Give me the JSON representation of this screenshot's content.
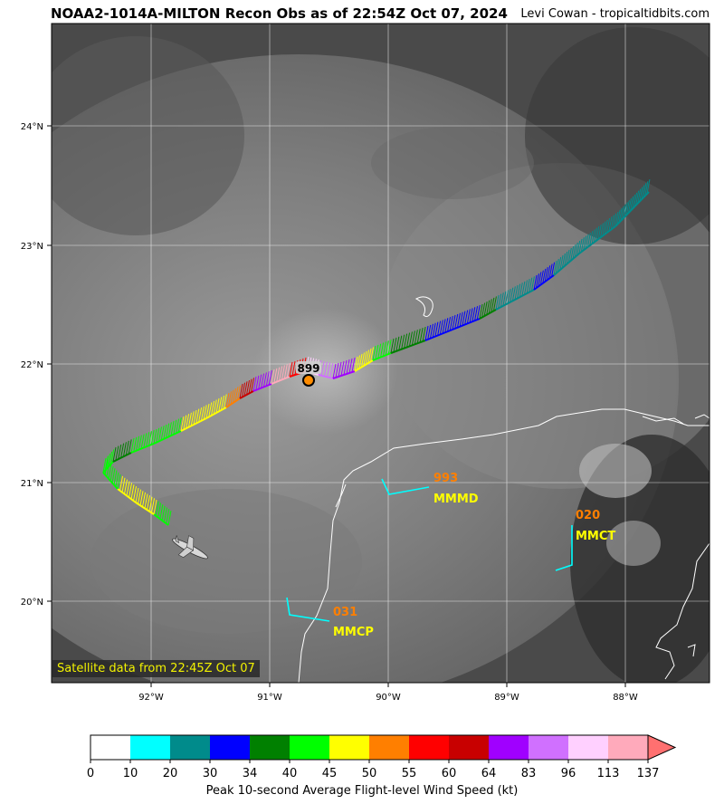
{
  "header": {
    "title": "NOAA2-1014A-MILTON Recon Obs as of 22:54Z Oct 07, 2024",
    "credit": "Levi Cowan - tropicaltidbits.com"
  },
  "map": {
    "satellite_label": "Satellite data from 22:45Z Oct 07",
    "lon_ticks": [
      "92°W",
      "91°W",
      "90°W",
      "89°W",
      "88°W"
    ],
    "lat_ticks": [
      "24°N",
      "23°N",
      "22°N",
      "21°N",
      "20°N"
    ],
    "center_pressure": "899",
    "stations": [
      {
        "id": "MMMD",
        "value": "993"
      },
      {
        "id": "MMCT",
        "value": "020"
      },
      {
        "id": "MMCP",
        "value": "031"
      }
    ],
    "label_colors": {
      "station_value": "#ff7f00",
      "station_id": "#ffff00",
      "wind_barb": "#00ffff"
    }
  },
  "colorbar": {
    "ticks": [
      "0",
      "10",
      "20",
      "30",
      "34",
      "40",
      "45",
      "50",
      "55",
      "60",
      "64",
      "83",
      "96",
      "113",
      "137"
    ],
    "colors": [
      "#ffffff",
      "#00ffff",
      "#008b8b",
      "#0000ff",
      "#008000",
      "#00ff00",
      "#ffff00",
      "#ff7f00",
      "#ff0000",
      "#c80000",
      "#a000ff",
      "#d070ff",
      "#ffd0ff",
      "#ffaabb"
    ],
    "label": "Peak 10-second Average Flight-level Wind Speed (kt)"
  }
}
